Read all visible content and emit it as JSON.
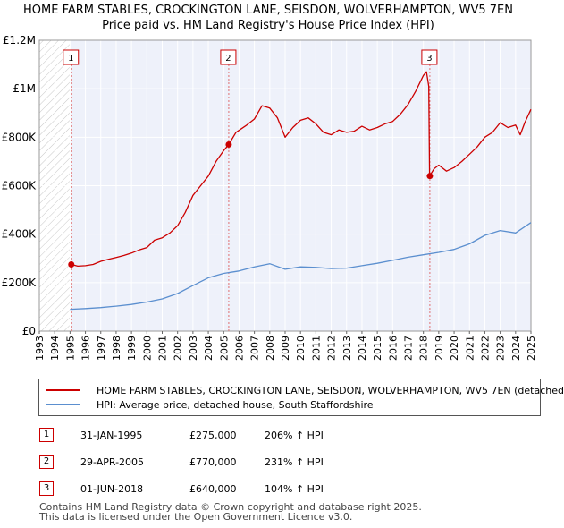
{
  "chart_data": {
    "type": "line",
    "title": "HOME FARM STABLES, CROCKINGTON LANE, SEISDON, WOLVERHAMPTON, WV5 7EN",
    "subtitle": "Price paid vs. HM Land Registry's House Price Index (HPI)",
    "xlim": [
      1993,
      2025
    ],
    "ylim": [
      0,
      1200000
    ],
    "y_ticks": [
      {
        "value": 0,
        "label": "£0"
      },
      {
        "value": 200000,
        "label": "£200K"
      },
      {
        "value": 400000,
        "label": "£400K"
      },
      {
        "value": 600000,
        "label": "£600K"
      },
      {
        "value": 800000,
        "label": "£800K"
      },
      {
        "value": 1000000,
        "label": "£1M"
      },
      {
        "value": 1200000,
        "label": "£1.2M"
      }
    ],
    "x_ticks": [
      "1993",
      "1994",
      "1995",
      "1996",
      "1997",
      "1998",
      "1999",
      "2000",
      "2001",
      "2002",
      "2003",
      "2004",
      "2005",
      "2006",
      "2007",
      "2008",
      "2009",
      "2010",
      "2011",
      "2012",
      "2013",
      "2014",
      "2015",
      "2016",
      "2017",
      "2018",
      "2019",
      "2020",
      "2021",
      "2022",
      "2023",
      "2024",
      "2025"
    ],
    "data_start": 1995.0,
    "grid": true,
    "series": [
      {
        "name": "HOME FARM STABLES, CROCKINGTON LANE, SEISDON, WOLVERHAMPTON, WV5 7EN (detached",
        "color": "#cc0000",
        "points": [
          [
            1995.08,
            275000
          ],
          [
            1995.5,
            268000
          ],
          [
            1996,
            270000
          ],
          [
            1996.5,
            275000
          ],
          [
            1997,
            288000
          ],
          [
            1997.5,
            296000
          ],
          [
            1998,
            304000
          ],
          [
            1998.5,
            312000
          ],
          [
            1999,
            322000
          ],
          [
            1999.5,
            335000
          ],
          [
            2000,
            345000
          ],
          [
            2000.5,
            375000
          ],
          [
            2001,
            385000
          ],
          [
            2001.5,
            405000
          ],
          [
            2002,
            435000
          ],
          [
            2002.5,
            490000
          ],
          [
            2003,
            560000
          ],
          [
            2003.5,
            600000
          ],
          [
            2004,
            640000
          ],
          [
            2004.5,
            700000
          ],
          [
            2005,
            745000
          ],
          [
            2005.33,
            770000
          ],
          [
            2005.8,
            820000
          ],
          [
            2006.5,
            850000
          ],
          [
            2007,
            875000
          ],
          [
            2007.5,
            930000
          ],
          [
            2008,
            920000
          ],
          [
            2008.5,
            880000
          ],
          [
            2009,
            800000
          ],
          [
            2009.5,
            840000
          ],
          [
            2010,
            870000
          ],
          [
            2010.5,
            880000
          ],
          [
            2011,
            855000
          ],
          [
            2011.5,
            820000
          ],
          [
            2012,
            810000
          ],
          [
            2012.5,
            830000
          ],
          [
            2013,
            820000
          ],
          [
            2013.5,
            825000
          ],
          [
            2014,
            845000
          ],
          [
            2014.5,
            830000
          ],
          [
            2015,
            840000
          ],
          [
            2015.5,
            855000
          ],
          [
            2016,
            865000
          ],
          [
            2016.5,
            895000
          ],
          [
            2017,
            935000
          ],
          [
            2017.5,
            990000
          ],
          [
            2018,
            1055000
          ],
          [
            2018.2,
            1070000
          ],
          [
            2018.35,
            1010000
          ],
          [
            2018.4,
            640000
          ],
          [
            2018.7,
            670000
          ],
          [
            2019,
            685000
          ],
          [
            2019.5,
            660000
          ],
          [
            2020,
            675000
          ],
          [
            2020.5,
            700000
          ],
          [
            2021,
            730000
          ],
          [
            2021.5,
            760000
          ],
          [
            2022,
            800000
          ],
          [
            2022.5,
            820000
          ],
          [
            2023,
            860000
          ],
          [
            2023.5,
            840000
          ],
          [
            2024,
            850000
          ],
          [
            2024.3,
            810000
          ],
          [
            2024.6,
            860000
          ],
          [
            2025,
            915000
          ]
        ]
      },
      {
        "name": "HPI: Average price, detached house, South Staffordshire",
        "color": "#5b8fcf",
        "points": [
          [
            1995,
            90000
          ],
          [
            1996,
            93000
          ],
          [
            1997,
            97000
          ],
          [
            1998,
            103000
          ],
          [
            1999,
            110000
          ],
          [
            2000,
            120000
          ],
          [
            2001,
            133000
          ],
          [
            2002,
            155000
          ],
          [
            2003,
            188000
          ],
          [
            2004,
            220000
          ],
          [
            2005,
            238000
          ],
          [
            2006,
            248000
          ],
          [
            2007,
            265000
          ],
          [
            2008,
            278000
          ],
          [
            2009,
            255000
          ],
          [
            2010,
            265000
          ],
          [
            2011,
            263000
          ],
          [
            2012,
            258000
          ],
          [
            2013,
            260000
          ],
          [
            2014,
            270000
          ],
          [
            2015,
            280000
          ],
          [
            2016,
            292000
          ],
          [
            2017,
            305000
          ],
          [
            2018,
            315000
          ],
          [
            2019,
            325000
          ],
          [
            2020,
            337000
          ],
          [
            2021,
            360000
          ],
          [
            2022,
            395000
          ],
          [
            2023,
            415000
          ],
          [
            2024,
            405000
          ],
          [
            2025,
            448000
          ]
        ]
      }
    ],
    "sales": [
      {
        "num": "1",
        "x": 1995.08,
        "price": 275000,
        "date": "31-JAN-1995",
        "price_label": "£275,000",
        "hpi": "206% ↑ HPI"
      },
      {
        "num": "2",
        "x": 2005.33,
        "price": 770000,
        "date": "29-APR-2005",
        "price_label": "£770,000",
        "hpi": "231% ↑ HPI"
      },
      {
        "num": "3",
        "x": 2018.42,
        "price": 640000,
        "date": "01-JUN-2018",
        "price_label": "£640,000",
        "hpi": "104% ↑ HPI"
      }
    ]
  },
  "legend": {
    "property_label": "HOME FARM STABLES, CROCKINGTON LANE, SEISDON, WOLVERHAMPTON, WV5 7EN (detached",
    "hpi_label": "HPI: Average price, detached house, South Staffordshire"
  },
  "footer": {
    "line1": "Contains HM Land Registry data © Crown copyright and database right 2025.",
    "line2": "This data is licensed under the Open Government Licence v3.0."
  },
  "colors": {
    "property": "#cc0000",
    "hpi": "#5b8fcf",
    "plot_bg": "#eef1fa"
  }
}
